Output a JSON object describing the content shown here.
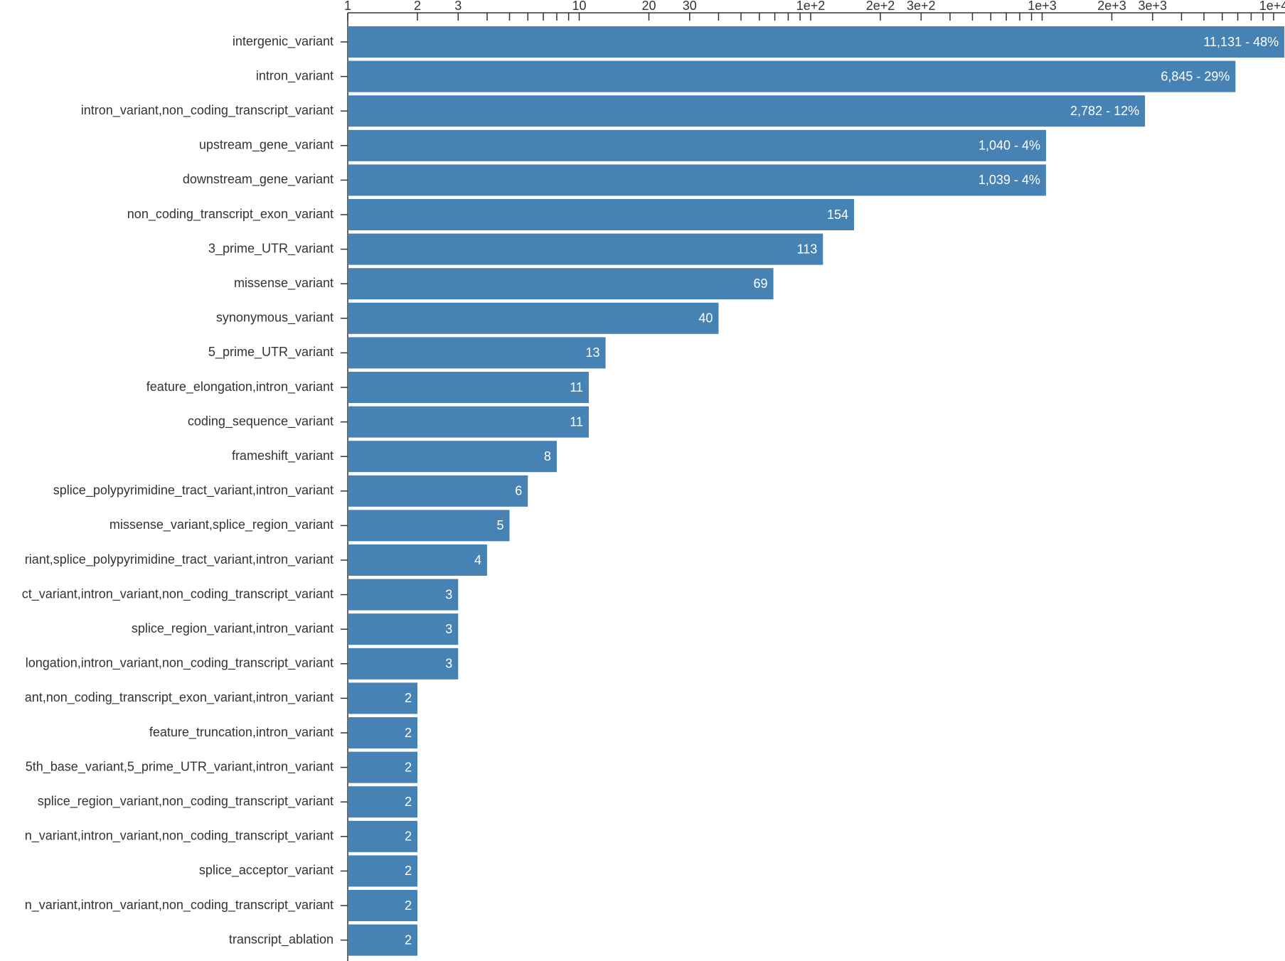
{
  "chart_data": {
    "type": "bar",
    "orientation": "horizontal",
    "x_scale": "log",
    "color": "#4682b4",
    "categories": [
      "intergenic_variant",
      "intron_variant",
      "intron_variant,non_coding_transcript_variant",
      "upstream_gene_variant",
      "downstream_gene_variant",
      "non_coding_transcript_exon_variant",
      "3_prime_UTR_variant",
      "missense_variant",
      "synonymous_variant",
      "5_prime_UTR_variant",
      "feature_elongation,intron_variant",
      "coding_sequence_variant",
      "frameshift_variant",
      "splice_polypyrimidine_tract_variant,intron_variant",
      "missense_variant,splice_region_variant",
      "riant,splice_polypyrimidine_tract_variant,intron_variant",
      "ct_variant,intron_variant,non_coding_transcript_variant",
      "splice_region_variant,intron_variant",
      "longation,intron_variant,non_coding_transcript_variant",
      "ant,non_coding_transcript_exon_variant,intron_variant",
      "feature_truncation,intron_variant",
      "5th_base_variant,5_prime_UTR_variant,intron_variant",
      "splice_region_variant,non_coding_transcript_variant",
      "n_variant,intron_variant,non_coding_transcript_variant",
      "splice_acceptor_variant",
      "n_variant,intron_variant,non_coding_transcript_variant",
      "transcript_ablation"
    ],
    "values": [
      11131,
      6845,
      2782,
      1040,
      1039,
      154,
      113,
      69,
      40,
      13,
      11,
      11,
      8,
      6,
      5,
      4,
      3,
      3,
      3,
      2,
      2,
      2,
      2,
      2,
      2,
      2,
      2
    ],
    "value_labels": [
      "11,131 - 48%",
      "6,845 - 29%",
      "2,782 - 12%",
      "1,040 - 4%",
      "1,039 - 4%",
      "154",
      "113",
      "69",
      "40",
      "13",
      "11",
      "11",
      "8",
      "6",
      "5",
      "4",
      "3",
      "3",
      "3",
      "2",
      "2",
      "2",
      "2",
      "2",
      "2",
      "2",
      "2"
    ],
    "xlim": [
      1,
      11200
    ],
    "xticks": [
      1,
      2,
      3,
      10,
      20,
      30,
      {
        "value": 100,
        "label": "1e+2"
      },
      {
        "value": 200,
        "label": "2e+2"
      },
      {
        "value": 300,
        "label": "3e+2"
      },
      {
        "value": 1000,
        "label": "1e+3"
      },
      {
        "value": 2000,
        "label": "2e+3"
      },
      {
        "value": 3000,
        "label": "3e+3"
      },
      {
        "value": 10000,
        "label": "1e+4"
      }
    ],
    "xminor_ticks": [
      4,
      5,
      6,
      7,
      8,
      9,
      40,
      50,
      60,
      70,
      80,
      90,
      400,
      500,
      600,
      700,
      800,
      900,
      4000,
      5000,
      6000,
      7000,
      8000,
      9000
    ]
  }
}
